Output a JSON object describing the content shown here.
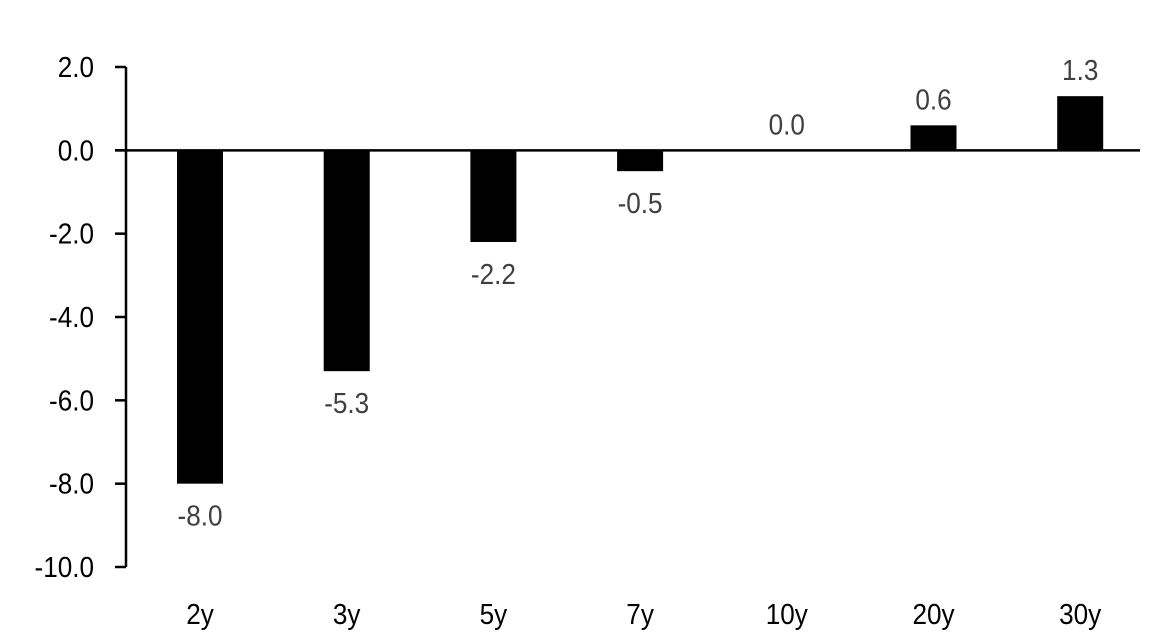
{
  "chart_data": {
    "type": "bar",
    "title": "",
    "xlabel": "",
    "ylabel": "",
    "categories": [
      "2y",
      "3y",
      "5y",
      "7y",
      "10y",
      "20y",
      "30y"
    ],
    "values": [
      -8.0,
      -5.3,
      -2.2,
      -0.5,
      0.0,
      0.6,
      1.3
    ],
    "data_labels": [
      "-8.0",
      "-5.3",
      "-2.2",
      "-0.5",
      "0.0",
      "0.6",
      "1.3"
    ],
    "ylim": [
      -10,
      2
    ],
    "yticks": [
      2,
      0,
      -2,
      -4,
      -6,
      -8,
      -10
    ],
    "ytick_labels": [
      "2.0",
      "0.0",
      "-2.0",
      "-4.0",
      "-6.0",
      "-8.0",
      "-10.0"
    ],
    "grid": false,
    "legend": "none",
    "colors": {
      "bar": "#000000",
      "data_label": "#404040",
      "axis": "#000000"
    }
  }
}
